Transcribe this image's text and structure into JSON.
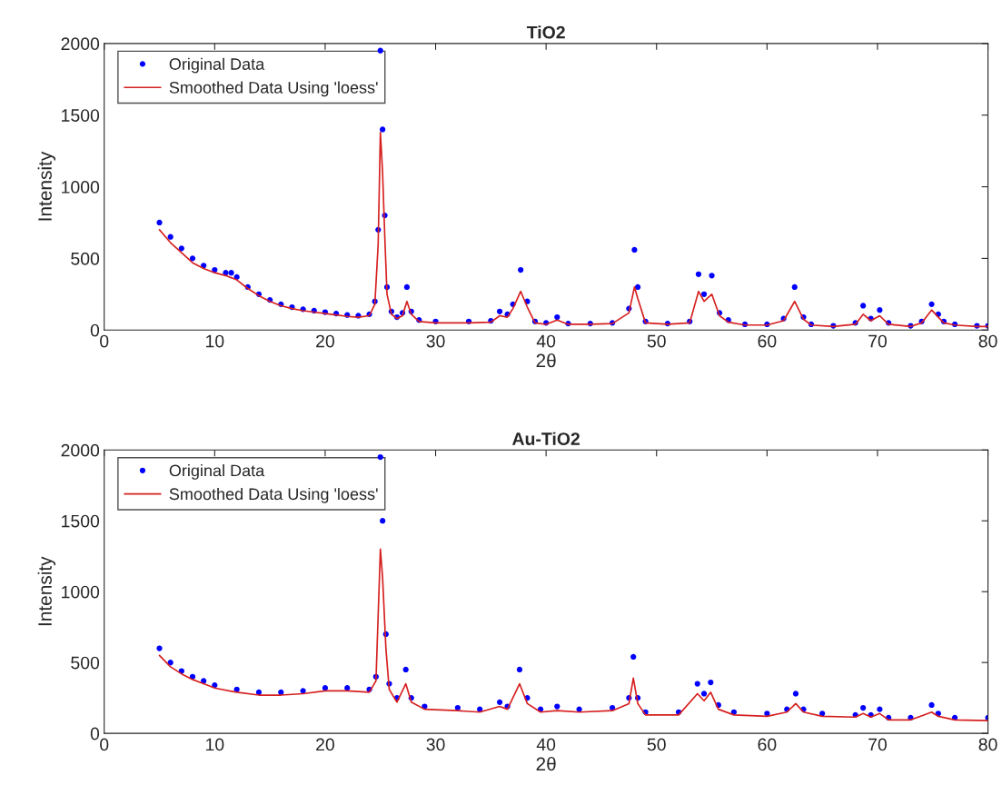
{
  "chart_data": [
    {
      "type": "scatter",
      "title": "TiO2",
      "xlabel": "2θ",
      "ylabel": "Intensity",
      "xlim": [
        0,
        80
      ],
      "ylim": [
        0,
        2000
      ],
      "xticks": [
        0,
        10,
        20,
        30,
        40,
        50,
        60,
        70,
        80
      ],
      "yticks": [
        0,
        500,
        1000,
        1500,
        2000
      ],
      "legend": "top left",
      "grid": false,
      "series": [
        {
          "name": "Original Data",
          "marker": "circle",
          "color": "#0000ff",
          "x": [
            5,
            6,
            7,
            8,
            9,
            10,
            11,
            11.5,
            12,
            13,
            14,
            15,
            16,
            17,
            18,
            19,
            20,
            21,
            22,
            23,
            24,
            24.5,
            24.8,
            25.0,
            25.2,
            25.4,
            25.6,
            26,
            26.5,
            27,
            27.4,
            27.8,
            28.5,
            30,
            33,
            35,
            35.8,
            36.5,
            37,
            37.7,
            38.3,
            39,
            40,
            41,
            42,
            44,
            46,
            47.5,
            48.0,
            48.3,
            49,
            51,
            53,
            53.8,
            54.3,
            55,
            55.7,
            56.5,
            58,
            60,
            61.5,
            62.5,
            63.3,
            64,
            66,
            68,
            68.7,
            69.4,
            70.2,
            71,
            73,
            74,
            74.9,
            75.5,
            76,
            77,
            79,
            80
          ],
          "values": [
            750,
            650,
            570,
            500,
            450,
            420,
            400,
            400,
            370,
            300,
            250,
            210,
            180,
            160,
            145,
            135,
            125,
            115,
            105,
            100,
            110,
            200,
            700,
            1950,
            1400,
            800,
            300,
            130,
            90,
            120,
            300,
            130,
            70,
            60,
            60,
            65,
            130,
            110,
            180,
            420,
            200,
            60,
            50,
            90,
            45,
            45,
            50,
            150,
            560,
            300,
            60,
            45,
            60,
            390,
            250,
            380,
            120,
            70,
            40,
            40,
            80,
            300,
            90,
            40,
            30,
            50,
            170,
            80,
            140,
            50,
            30,
            60,
            180,
            110,
            60,
            40,
            30,
            30
          ]
        },
        {
          "name": "Smoothed Data Using 'loess'",
          "type": "line",
          "marker": "none",
          "line_style": "solid",
          "color": "#d62020",
          "x": [
            5,
            6,
            7,
            8,
            9,
            10,
            11,
            12,
            13,
            14,
            15,
            16,
            17,
            18,
            19,
            20,
            21,
            22,
            23,
            24,
            24.5,
            24.8,
            25.0,
            25.2,
            25.4,
            25.6,
            26,
            26.5,
            27,
            27.4,
            27.8,
            28.5,
            30,
            33,
            35,
            35.8,
            36.5,
            37,
            37.7,
            38.3,
            39,
            40,
            41,
            42,
            44,
            46,
            47.5,
            48.0,
            48.3,
            49,
            51,
            53,
            53.8,
            54.3,
            55,
            55.7,
            56.5,
            58,
            60,
            61.5,
            62.5,
            63.3,
            64,
            66,
            68,
            68.7,
            69.4,
            70.2,
            71,
            73,
            74,
            74.9,
            75.5,
            76,
            77,
            79,
            80
          ],
          "values": [
            700,
            610,
            540,
            470,
            430,
            400,
            380,
            350,
            290,
            240,
            200,
            170,
            150,
            135,
            125,
            115,
            105,
            95,
            90,
            100,
            180,
            600,
            1380,
            1100,
            650,
            250,
            110,
            80,
            100,
            200,
            110,
            60,
            50,
            50,
            55,
            100,
            90,
            150,
            270,
            160,
            50,
            40,
            70,
            40,
            40,
            45,
            120,
            300,
            220,
            50,
            40,
            50,
            270,
            200,
            250,
            100,
            55,
            35,
            35,
            65,
            200,
            75,
            35,
            25,
            40,
            110,
            65,
            100,
            40,
            25,
            50,
            140,
            90,
            50,
            35,
            25,
            25
          ]
        }
      ]
    },
    {
      "type": "scatter",
      "title": "Au-TiO2",
      "xlabel": "2θ",
      "ylabel": "Intensity",
      "xlim": [
        0,
        80
      ],
      "ylim": [
        0,
        2000
      ],
      "xticks": [
        0,
        10,
        20,
        30,
        40,
        50,
        60,
        70,
        80
      ],
      "yticks": [
        0,
        500,
        1000,
        1500,
        2000
      ],
      "legend": "top left",
      "grid": false,
      "series": [
        {
          "name": "Original Data",
          "marker": "circle",
          "color": "#0000ff",
          "x": [
            5,
            6,
            7,
            8,
            9,
            10,
            12,
            14,
            16,
            18,
            20,
            22,
            24,
            24.6,
            25.0,
            25.2,
            25.5,
            25.8,
            26.5,
            27.3,
            27.8,
            29,
            32,
            34,
            35.8,
            36.5,
            37.6,
            38.3,
            39.5,
            41,
            43,
            46,
            47.5,
            47.9,
            48.3,
            49,
            52,
            53.7,
            54.3,
            54.9,
            55.6,
            57,
            60,
            61.8,
            62.6,
            63.3,
            65,
            68,
            68.7,
            69.4,
            70.2,
            71,
            73,
            74.9,
            75.5,
            77,
            80
          ],
          "values": [
            600,
            500,
            440,
            400,
            370,
            340,
            310,
            290,
            290,
            300,
            320,
            320,
            310,
            400,
            1950,
            1500,
            700,
            350,
            250,
            450,
            250,
            190,
            180,
            170,
            220,
            190,
            450,
            250,
            170,
            190,
            170,
            180,
            250,
            540,
            250,
            150,
            150,
            350,
            280,
            360,
            200,
            150,
            140,
            170,
            280,
            170,
            140,
            130,
            180,
            130,
            170,
            110,
            110,
            200,
            140,
            110,
            110
          ]
        },
        {
          "name": "Smoothed Data Using 'loess'",
          "type": "line",
          "marker": "none",
          "line_style": "solid",
          "color": "#d62020",
          "x": [
            5,
            6,
            7,
            8,
            9,
            10,
            12,
            14,
            16,
            18,
            20,
            22,
            24,
            24.6,
            25.0,
            25.2,
            25.5,
            25.8,
            26.5,
            27.3,
            27.8,
            29,
            32,
            34,
            35.8,
            36.5,
            37.6,
            38.3,
            39.5,
            41,
            43,
            46,
            47.5,
            47.9,
            48.3,
            49,
            52,
            53.7,
            54.3,
            54.9,
            55.6,
            57,
            60,
            61.8,
            62.6,
            63.3,
            65,
            68,
            68.7,
            69.4,
            70.2,
            71,
            73,
            74.9,
            75.5,
            77,
            80
          ],
          "values": [
            550,
            470,
            420,
            380,
            350,
            320,
            290,
            270,
            270,
            280,
            300,
            300,
            290,
            370,
            1300,
            1100,
            600,
            310,
            220,
            350,
            220,
            170,
            160,
            150,
            190,
            170,
            350,
            210,
            150,
            160,
            150,
            160,
            210,
            390,
            210,
            130,
            130,
            280,
            230,
            290,
            170,
            130,
            120,
            150,
            210,
            150,
            120,
            115,
            140,
            115,
            140,
            95,
            95,
            150,
            120,
            95,
            90
          ]
        }
      ]
    }
  ]
}
